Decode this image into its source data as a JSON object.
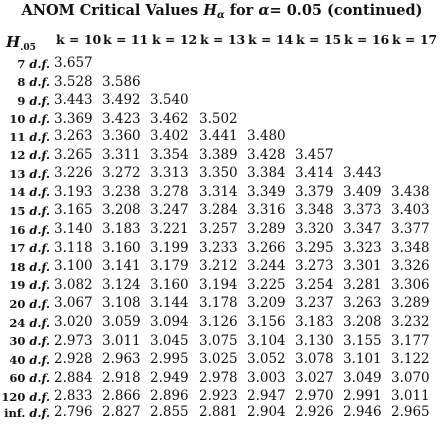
{
  "title": {
    "prefix": "ANOM Critical Values",
    "symbol": "H",
    "symbol_sub": "α",
    "mid": "for",
    "alpha": "α",
    "suffix": "= 0.05  (continued)"
  },
  "row_header": {
    "symbol": "H",
    "sub": ".05"
  },
  "k_headers": [
    "k = 10",
    "k = 11",
    "k = 12",
    "k = 13",
    "k = 14",
    "k = 15",
    "k = 16",
    "k = 17"
  ],
  "df_suffix": "d.f.",
  "groups": [
    [
      {
        "df": "7",
        "values": [
          "3.657"
        ]
      },
      {
        "df": "8",
        "values": [
          "3.528",
          "3.586"
        ]
      },
      {
        "df": "9",
        "values": [
          "3.443",
          "3.492",
          "3.540"
        ]
      },
      {
        "df": "10",
        "values": [
          "3.369",
          "3.423",
          "3.462",
          "3.502"
        ]
      }
    ],
    [
      {
        "df": "11",
        "values": [
          "3.263",
          "3.360",
          "3.402",
          "3.441",
          "3.480"
        ]
      },
      {
        "df": "12",
        "values": [
          "3.265",
          "3.311",
          "3.354",
          "3.389",
          "3.428",
          "3.457"
        ]
      },
      {
        "df": "13",
        "values": [
          "3.226",
          "3.272",
          "3.313",
          "3.350",
          "3.384",
          "3.414",
          "3.443"
        ]
      },
      {
        "df": "14",
        "values": [
          "3.193",
          "3.238",
          "3.278",
          "3.314",
          "3.349",
          "3.379",
          "3.409",
          "3.438"
        ]
      },
      {
        "df": "15",
        "values": [
          "3.165",
          "3.208",
          "3.247",
          "3.284",
          "3.316",
          "3.348",
          "3.373",
          "3.403"
        ]
      }
    ],
    [
      {
        "df": "16",
        "values": [
          "3.140",
          "3.183",
          "3.221",
          "3.257",
          "3.289",
          "3.320",
          "3.347",
          "3.377"
        ]
      },
      {
        "df": "17",
        "values": [
          "3.118",
          "3.160",
          "3.199",
          "3.233",
          "3.266",
          "3.295",
          "3.323",
          "3.348"
        ]
      },
      {
        "df": "18",
        "values": [
          "3.100",
          "3.141",
          "3.179",
          "3.212",
          "3.244",
          "3.273",
          "3.301",
          "3.326"
        ]
      },
      {
        "df": "19",
        "values": [
          "3.082",
          "3.124",
          "3.160",
          "3.194",
          "3.225",
          "3.254",
          "3.281",
          "3.306"
        ]
      },
      {
        "df": "20",
        "values": [
          "3.067",
          "3.108",
          "3.144",
          "3.178",
          "3.209",
          "3.237",
          "3.263",
          "3.289"
        ]
      }
    ],
    [
      {
        "df": "24",
        "values": [
          "3.020",
          "3.059",
          "3.094",
          "3.126",
          "3.156",
          "3.183",
          "3.208",
          "3.232"
        ]
      },
      {
        "df": "30",
        "values": [
          "2.973",
          "3.011",
          "3.045",
          "3.075",
          "3.104",
          "3.130",
          "3.155",
          "3.177"
        ]
      },
      {
        "df": "40",
        "values": [
          "2.928",
          "2.963",
          "2.995",
          "3.025",
          "3.052",
          "3.078",
          "3.101",
          "3.122"
        ]
      },
      {
        "df": "60",
        "values": [
          "2.884",
          "2.918",
          "2.949",
          "2.978",
          "3.003",
          "3.027",
          "3.049",
          "3.070"
        ]
      },
      {
        "df": "120",
        "values": [
          "2.833",
          "2.866",
          "2.896",
          "2.923",
          "2.947",
          "2.970",
          "2.991",
          "3.011"
        ]
      }
    ],
    [
      {
        "df": "inf.",
        "values": [
          "2.796",
          "2.827",
          "2.855",
          "2.881",
          "2.904",
          "2.926",
          "2.946",
          "2.965"
        ]
      }
    ]
  ]
}
